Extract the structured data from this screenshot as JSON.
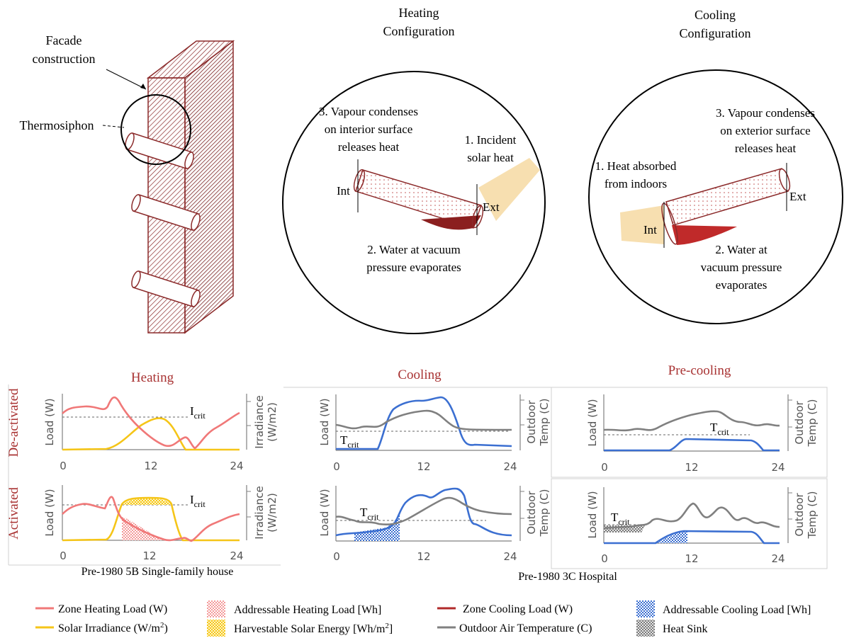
{
  "colors": {
    "heating": "#f07878",
    "solar": "#f5c518",
    "cooling": "#3b6fd1",
    "outdoor": "#808080",
    "brick": "#8b2a2a",
    "zone_cooling": "#b02a2a",
    "title_red": "#a83232",
    "beam": "#f7dfb0"
  },
  "facade": {
    "label_l1": "Facade",
    "label_l2": "construction",
    "thermosiphon_label": "Thermosiphon"
  },
  "heating_config": {
    "title_l1": "Heating",
    "title_l2": "Configuration",
    "step3_l1": "3. Vapour condenses",
    "step3_l2": "on interior surface",
    "step3_l3": "releases heat",
    "step1_l1": "1. Incident",
    "step1_l2": "solar heat",
    "int_label": "Int",
    "ext_label": "Ext",
    "step2_l1": "2. Water at vacuum",
    "step2_l2": "pressure evaporates"
  },
  "cooling_config": {
    "title_l1": "Cooling",
    "title_l2": "Configuration",
    "step3_l1": "3. Vapour condenses",
    "step3_l2": "on exterior surface",
    "step3_l3": "releases heat",
    "step1_l1": "1. Heat absorbed",
    "step1_l2": "from indoors",
    "int_label": "Int",
    "ext_label": "Ext",
    "step2_l1": "2. Water at",
    "step2_l2": "vacuum pressure",
    "step2_l3": "evaporates"
  },
  "panels": {
    "heating_title": "Heating",
    "cooling_title": "Cooling",
    "precooling_title": "Pre-cooling",
    "row_deactivated": "De-activated",
    "row_activated": "Activated",
    "ylabel_load": "Load (W)",
    "ylabel_irr_l1": "Irradiance",
    "ylabel_irr_l2": "(W/m2)",
    "ylabel_temp_l1": "Outdoor",
    "ylabel_temp_l2": "Temp (C)",
    "icrit_main": "I",
    "icrit_sub": "crit",
    "tcrit_main": "T",
    "tcrit_sub": "crit",
    "caption_house": "Pre-1980 5B Single-family house",
    "caption_hospital": "Pre-1980 3C Hospital",
    "x_ticks": [
      "0",
      "12",
      "24"
    ]
  },
  "legend": {
    "zone_heating": "Zone Heating Load (W)",
    "solar_irr_main": "Solar Irradiance (W/m",
    "solar_irr_sup": "2",
    "solar_irr_end": ")",
    "addr_heating": "Addressable Heating Load [Wh]",
    "harvest_main": "Harvestable Solar Energy [Wh/m",
    "harvest_sup": "2",
    "harvest_end": "]",
    "zone_cooling": "Zone Cooling Load (W)",
    "outdoor_temp": "Outdoor Air Temperature (C)",
    "addr_cooling": "Addressable Cooling Load [Wh]",
    "heat_sink": "Heat Sink"
  }
}
